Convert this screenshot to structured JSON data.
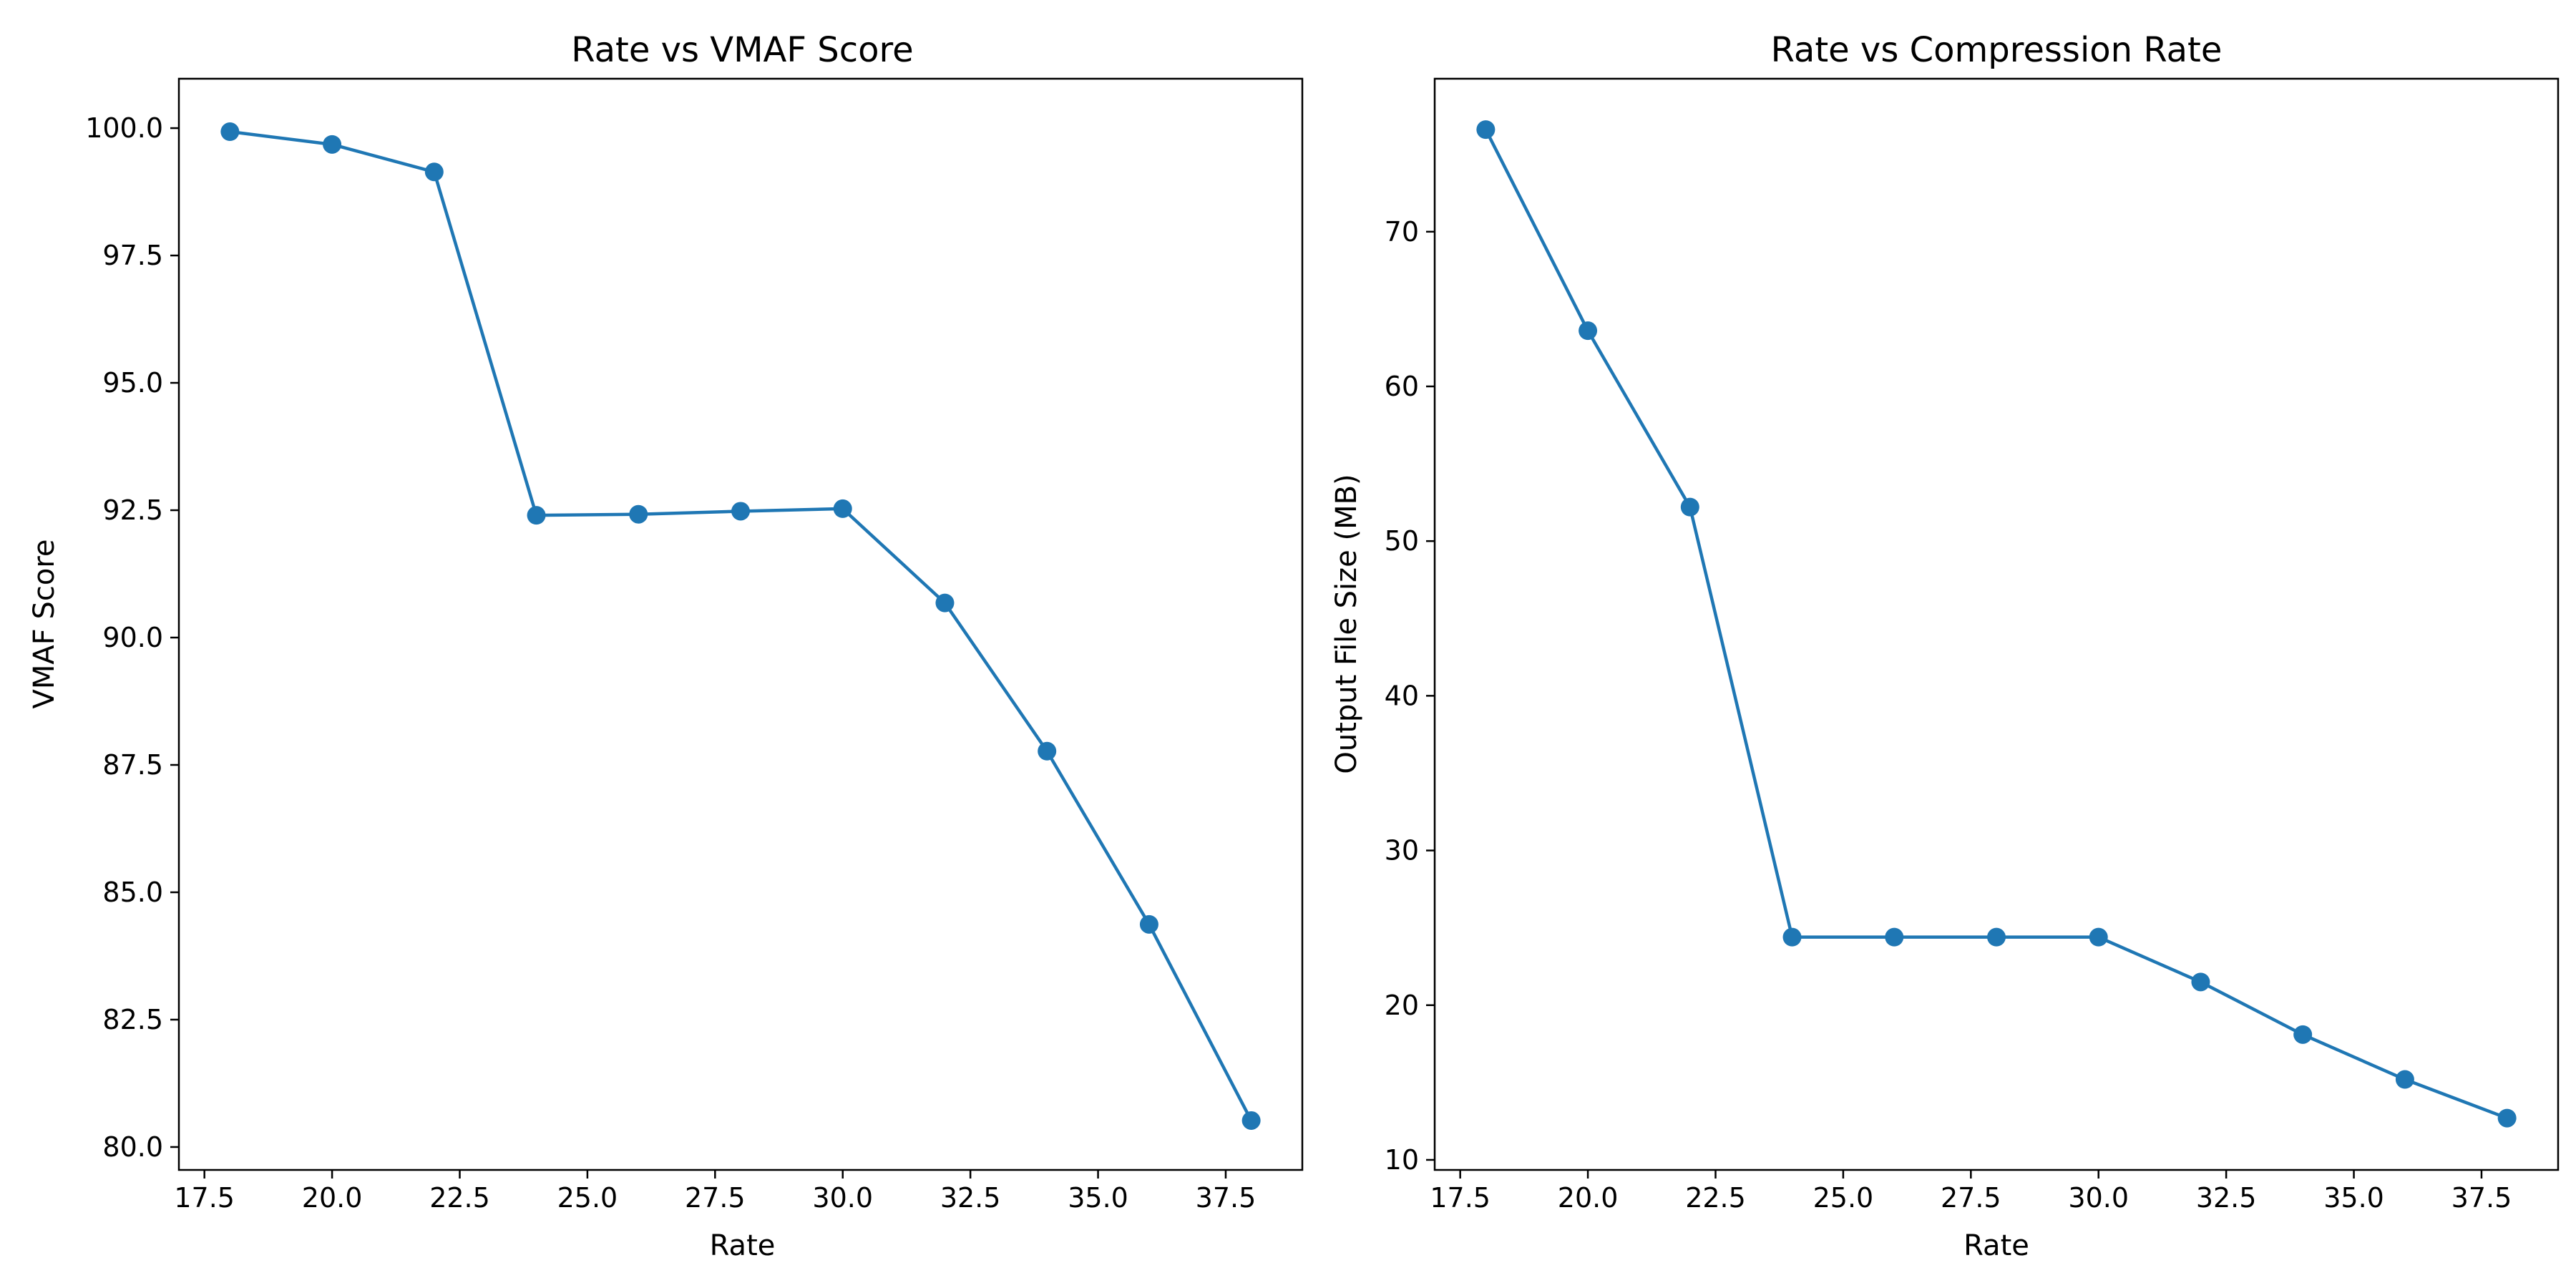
{
  "chart_data": [
    {
      "type": "line",
      "title": "Rate vs VMAF Score",
      "xlabel": "Rate",
      "ylabel": "VMAF Score",
      "xlim": [
        17.0,
        39.0
      ],
      "ylim": [
        79.55,
        100.97
      ],
      "xticks": [
        "17.5",
        "20.0",
        "22.5",
        "25.0",
        "27.5",
        "30.0",
        "32.5",
        "35.0",
        "37.5"
      ],
      "yticks": [
        "80.0",
        "82.5",
        "85.0",
        "87.5",
        "90.0",
        "92.5",
        "95.0",
        "97.5",
        "100.0"
      ],
      "grid": false,
      "x": [
        18,
        20,
        22,
        24,
        26,
        28,
        30,
        32,
        34,
        36,
        38
      ],
      "series": [
        {
          "values": [
            99.93,
            99.68,
            99.14,
            92.4,
            92.42,
            92.48,
            92.53,
            90.68,
            87.77,
            84.37,
            80.52
          ],
          "color": "#1f77b4",
          "marker": "circle"
        }
      ]
    },
    {
      "type": "line",
      "title": "Rate vs Compression Rate",
      "xlabel": "Rate",
      "ylabel": "Output File Size (MB)",
      "xlim": [
        17.0,
        39.0
      ],
      "ylim": [
        9.35,
        79.89
      ],
      "xticks": [
        "17.5",
        "20.0",
        "22.5",
        "25.0",
        "27.5",
        "30.0",
        "32.5",
        "35.0",
        "37.5"
      ],
      "yticks": [
        "10",
        "20",
        "30",
        "40",
        "50",
        "60",
        "70"
      ],
      "grid": false,
      "x": [
        18,
        20,
        22,
        24,
        26,
        28,
        30,
        32,
        34,
        36,
        38
      ],
      "series": [
        {
          "values": [
            76.6,
            63.6,
            52.2,
            24.4,
            24.4,
            24.4,
            24.4,
            21.5,
            18.1,
            15.2,
            12.7
          ],
          "color": "#1f77b4",
          "marker": "circle"
        }
      ]
    }
  ]
}
